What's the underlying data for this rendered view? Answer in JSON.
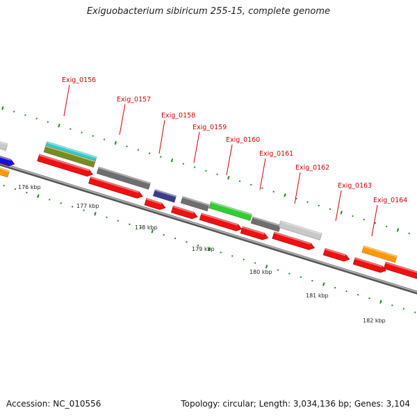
{
  "title": "Exiguobacterium sibiricum 255-15, complete genome",
  "footer": {
    "accession": "Accession: NC_010556",
    "summary": "Topology: circular; Length: 3,034,136 bp; Genes: 3,104"
  },
  "colors": {
    "gene_label": "#d00000",
    "backbone": "#808080",
    "tick": "#1a8a1a",
    "cds_red": "#ee1111",
    "grey": "#6e6e6e",
    "light_grey": "#c8c8c8",
    "cyan": "#33cccc",
    "olive": "#7a8a22",
    "blue": "#1111dd",
    "orange": "#ff9900",
    "purple": "#3c3c8c",
    "green": "#33cc33"
  },
  "gene_labels": [
    "Exig_0156",
    "Exig_0157",
    "Exig_0158",
    "Exig_0159",
    "Exig_0160",
    "Exig_0161",
    "Exig_0162",
    "Exig_0163",
    "Exig_0164"
  ],
  "tick_labels": [
    "176 kbp",
    "177 kbp",
    "178 kbp",
    "179 kbp",
    "180 kbp",
    "181 kbp",
    "182 kbp"
  ]
}
